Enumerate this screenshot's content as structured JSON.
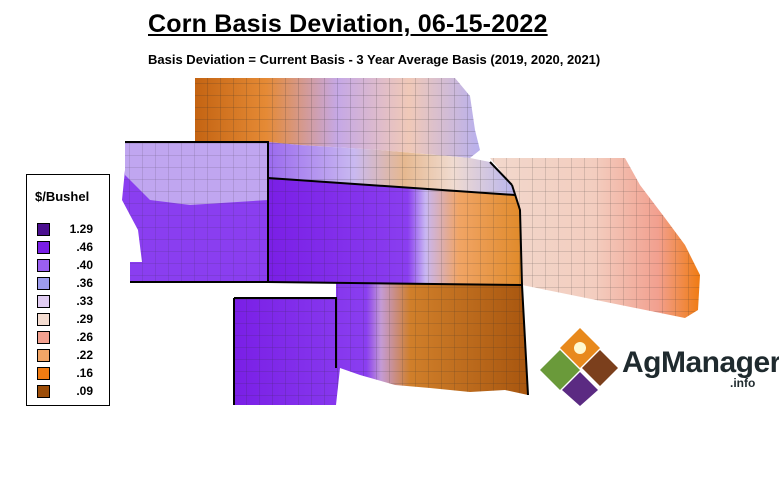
{
  "title": "Corn Basis Deviation, 06-15-2022",
  "subtitle": "Basis Deviation = Current Basis - 3 Year Average Basis (2019, 2020, 2021)",
  "legend": {
    "title": "$/Bushel",
    "items": [
      {
        "label": "1.29",
        "color": "#4b0f8f"
      },
      {
        "label": ".46",
        "color": "#7a1fe6"
      },
      {
        "label": ".40",
        "color": "#9a5ff0"
      },
      {
        "label": ".36",
        "color": "#9d9cee"
      },
      {
        "label": ".33",
        "color": "#e1cdf3"
      },
      {
        "label": ".29",
        "color": "#f4dcd0"
      },
      {
        "label": ".26",
        "color": "#f2a08f"
      },
      {
        "label": ".22",
        "color": "#f1a566"
      },
      {
        "label": ".16",
        "color": "#f07b12"
      },
      {
        "label": ".09",
        "color": "#9c4d08"
      }
    ]
  },
  "logo": {
    "name": "AgManager",
    "suffix": ".info",
    "colors": {
      "orange": "#e8891c",
      "green": "#6a9a3a",
      "brown": "#7b3f1c",
      "purple": "#5b2a82"
    }
  }
}
